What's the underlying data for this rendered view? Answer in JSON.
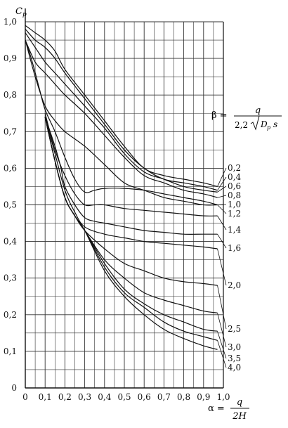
{
  "chart_data": {
    "type": "line",
    "ylabel_main": "C",
    "ylabel_sub": "p",
    "xlabel_lhs": "α =",
    "xlabel_num": "q",
    "xlabel_den": "2H",
    "beta_lhs": "β =",
    "beta_num": "q",
    "beta_den_prefix": "2,2",
    "beta_den_D": "D",
    "beta_den_sub": "p",
    "beta_den_s": "s",
    "x_ticks": [
      "0",
      "0,1",
      "0,2",
      "0,3",
      "0,4",
      "0,5",
      "0,6",
      "0,7",
      "0,8",
      "0,9",
      "1,0"
    ],
    "y_ticks": [
      "0",
      "0,1",
      "0,2",
      "0,3",
      "0,4",
      "0,5",
      "0,6",
      "0,7",
      "0,8",
      "0,9",
      "1,0"
    ],
    "xlim": [
      0,
      1.0
    ],
    "ylim": [
      0,
      1.0
    ],
    "grid": true,
    "series": [
      {
        "name": "0,2",
        "x": [
          0.0,
          0.05,
          0.1,
          0.15,
          0.2,
          0.3,
          0.4,
          0.5,
          0.6,
          0.7,
          0.8,
          0.9,
          0.97
        ],
        "y": [
          0.99,
          0.97,
          0.95,
          0.92,
          0.87,
          0.8,
          0.73,
          0.66,
          0.6,
          0.58,
          0.57,
          0.56,
          0.55
        ]
      },
      {
        "name": "0,4",
        "x": [
          0.0,
          0.05,
          0.1,
          0.15,
          0.2,
          0.3,
          0.4,
          0.5,
          0.6,
          0.7,
          0.8,
          0.9,
          0.97
        ],
        "y": [
          0.98,
          0.95,
          0.93,
          0.9,
          0.86,
          0.79,
          0.72,
          0.65,
          0.6,
          0.57,
          0.56,
          0.55,
          0.54
        ]
      },
      {
        "name": "0,6",
        "x": [
          0.0,
          0.05,
          0.1,
          0.15,
          0.2,
          0.3,
          0.4,
          0.5,
          0.6,
          0.7,
          0.8,
          0.9,
          0.97
        ],
        "y": [
          0.97,
          0.93,
          0.89,
          0.86,
          0.83,
          0.77,
          0.71,
          0.64,
          0.59,
          0.57,
          0.55,
          0.54,
          0.535
        ]
      },
      {
        "name": "0,8",
        "x": [
          0.0,
          0.05,
          0.1,
          0.15,
          0.2,
          0.3,
          0.4,
          0.5,
          0.6,
          0.7,
          0.8,
          0.9,
          0.97
        ],
        "y": [
          0.95,
          0.89,
          0.86,
          0.83,
          0.8,
          0.75,
          0.69,
          0.63,
          0.58,
          0.56,
          0.54,
          0.53,
          0.52
        ]
      },
      {
        "name": "1,0",
        "x": [
          0.0,
          0.05,
          0.1,
          0.15,
          0.2,
          0.3,
          0.4,
          0.5,
          0.6,
          0.7,
          0.8,
          0.9,
          0.97
        ],
        "y": [
          0.95,
          0.85,
          0.77,
          0.73,
          0.7,
          0.66,
          0.61,
          0.56,
          0.54,
          0.52,
          0.51,
          0.5,
          0.5
        ]
      },
      {
        "name": "1,2",
        "x": [
          0.0,
          0.03,
          0.07,
          0.1,
          0.15,
          0.2,
          0.25,
          0.3,
          0.35,
          0.4,
          0.5,
          0.6,
          0.7,
          0.8,
          0.9,
          0.97
        ],
        "y": [
          0.95,
          0.9,
          0.82,
          0.76,
          0.7,
          0.63,
          0.57,
          0.535,
          0.54,
          0.545,
          0.545,
          0.54,
          0.53,
          0.52,
          0.51,
          0.5
        ]
      },
      {
        "name": "1,4",
        "x": [
          0.1,
          0.15,
          0.2,
          0.25,
          0.3,
          0.35,
          0.4,
          0.5,
          0.6,
          0.7,
          0.8,
          0.9,
          0.97
        ],
        "y": [
          0.75,
          0.65,
          0.58,
          0.53,
          0.5,
          0.5,
          0.5,
          0.49,
          0.485,
          0.48,
          0.475,
          0.47,
          0.47
        ]
      },
      {
        "name": "1,6",
        "x": [
          0.1,
          0.15,
          0.18,
          0.2,
          0.25,
          0.3,
          0.35,
          0.4,
          0.5,
          0.6,
          0.7,
          0.8,
          0.9,
          0.97
        ],
        "y": [
          0.74,
          0.66,
          0.6,
          0.55,
          0.5,
          0.465,
          0.455,
          0.45,
          0.44,
          0.43,
          0.425,
          0.42,
          0.42,
          0.42
        ]
      },
      {
        "name": "2,0",
        "x": [
          0.1,
          0.15,
          0.2,
          0.25,
          0.3,
          0.4,
          0.5,
          0.6,
          0.7,
          0.8,
          0.9,
          0.97
        ],
        "y": [
          0.74,
          0.64,
          0.54,
          0.48,
          0.44,
          0.42,
          0.41,
          0.4,
          0.395,
          0.39,
          0.385,
          0.38
        ]
      },
      {
        "name": "2,5",
        "x": [
          0.1,
          0.15,
          0.2,
          0.25,
          0.3,
          0.4,
          0.5,
          0.6,
          0.7,
          0.8,
          0.9,
          0.97
        ],
        "y": [
          0.74,
          0.62,
          0.52,
          0.47,
          0.43,
          0.38,
          0.34,
          0.32,
          0.3,
          0.29,
          0.285,
          0.28
        ]
      },
      {
        "name": "3,0",
        "x": [
          0.1,
          0.15,
          0.2,
          0.25,
          0.3,
          0.4,
          0.5,
          0.6,
          0.7,
          0.8,
          0.9,
          0.97
        ],
        "y": [
          0.74,
          0.62,
          0.52,
          0.47,
          0.43,
          0.35,
          0.3,
          0.26,
          0.24,
          0.225,
          0.21,
          0.205
        ]
      },
      {
        "name": "3,5",
        "x": [
          0.1,
          0.15,
          0.2,
          0.25,
          0.3,
          0.4,
          0.5,
          0.6,
          0.7,
          0.8,
          0.9,
          0.97
        ],
        "y": [
          0.74,
          0.62,
          0.52,
          0.47,
          0.43,
          0.34,
          0.27,
          0.23,
          0.2,
          0.18,
          0.16,
          0.155
        ]
      },
      {
        "name": "4,0",
        "x": [
          0.1,
          0.15,
          0.2,
          0.25,
          0.3,
          0.4,
          0.5,
          0.6,
          0.7,
          0.8,
          0.9,
          0.97
        ],
        "y": [
          0.74,
          0.62,
          0.52,
          0.47,
          0.43,
          0.33,
          0.26,
          0.22,
          0.18,
          0.155,
          0.14,
          0.13
        ]
      },
      {
        "name": "",
        "x": [
          0.1,
          0.15,
          0.2,
          0.25,
          0.3,
          0.4,
          0.5,
          0.6,
          0.7,
          0.8,
          0.9,
          0.97
        ],
        "y": [
          0.74,
          0.62,
          0.52,
          0.47,
          0.43,
          0.32,
          0.25,
          0.2,
          0.16,
          0.135,
          0.115,
          0.105
        ]
      }
    ]
  }
}
